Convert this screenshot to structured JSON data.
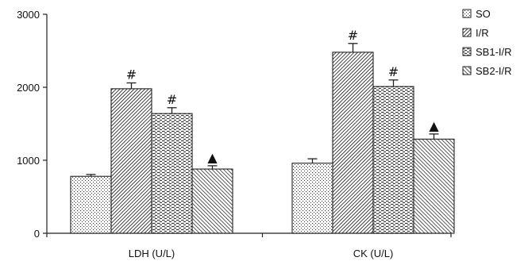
{
  "chart_data": {
    "type": "bar",
    "title": "",
    "xlabel": "",
    "ylabel": "",
    "ylim": [
      0,
      3000
    ],
    "yticks": [
      0,
      1000,
      2000,
      3000
    ],
    "categories": [
      "LDH (U/L)",
      "CK (U/L)"
    ],
    "series": [
      {
        "name": "SO",
        "values": [
          780,
          960
        ],
        "errors": [
          25,
          60
        ],
        "annotations": [
          "",
          ""
        ]
      },
      {
        "name": "I/R",
        "values": [
          1980,
          2480
        ],
        "errors": [
          80,
          120
        ],
        "annotations": [
          "#",
          "#"
        ]
      },
      {
        "name": "SB1-I/R",
        "values": [
          1640,
          2010
        ],
        "errors": [
          80,
          90
        ],
        "annotations": [
          "#",
          "#"
        ]
      },
      {
        "name": "SB2-I/R",
        "values": [
          880,
          1290
        ],
        "errors": [
          45,
          70
        ],
        "annotations": [
          "▲",
          "▲"
        ]
      }
    ],
    "legend_position": "top-right",
    "grid": false
  }
}
